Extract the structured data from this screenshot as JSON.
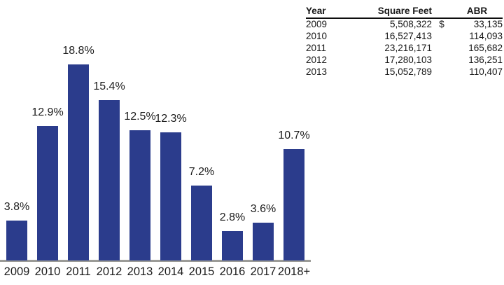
{
  "chart_data": {
    "type": "bar",
    "title": "",
    "xlabel": "",
    "ylabel": "",
    "ylim": [
      0,
      20
    ],
    "grid": false,
    "legend": "none",
    "categories": [
      "2009",
      "2010",
      "2011",
      "2012",
      "2013",
      "2014",
      "2015",
      "2016",
      "2017",
      "2018+"
    ],
    "values": [
      3.8,
      12.9,
      18.8,
      15.4,
      12.5,
      12.3,
      7.2,
      2.8,
      3.6,
      10.7
    ],
    "value_labels": [
      "3.8%",
      "12.9%",
      "18.8%",
      "15.4%",
      "12.5%",
      "12.3%",
      "7.2%",
      "2.8%",
      "3.6%",
      "10.7%"
    ],
    "bar_color": "#2b3c8c",
    "axis_color": "#9b9b97",
    "label_color": "#1c1c1c"
  },
  "table": {
    "columns": [
      {
        "key": "year",
        "label": "Year"
      },
      {
        "key": "square_feet",
        "label": "Square Feet"
      },
      {
        "key": "currency",
        "label": ""
      },
      {
        "key": "abr",
        "label": "ABR"
      }
    ],
    "rows": [
      {
        "year": "2009",
        "square_feet": "5,508,322",
        "currency": "$",
        "abr": "33,135"
      },
      {
        "year": "2010",
        "square_feet": "16,527,413",
        "currency": "",
        "abr": "114,093"
      },
      {
        "year": "2011",
        "square_feet": "23,216,171",
        "currency": "",
        "abr": "165,682"
      },
      {
        "year": "2012",
        "square_feet": "17,280,103",
        "currency": "",
        "abr": "136,251"
      },
      {
        "year": "2013",
        "square_feet": "15,052,789",
        "currency": "",
        "abr": "110,407"
      }
    ]
  }
}
